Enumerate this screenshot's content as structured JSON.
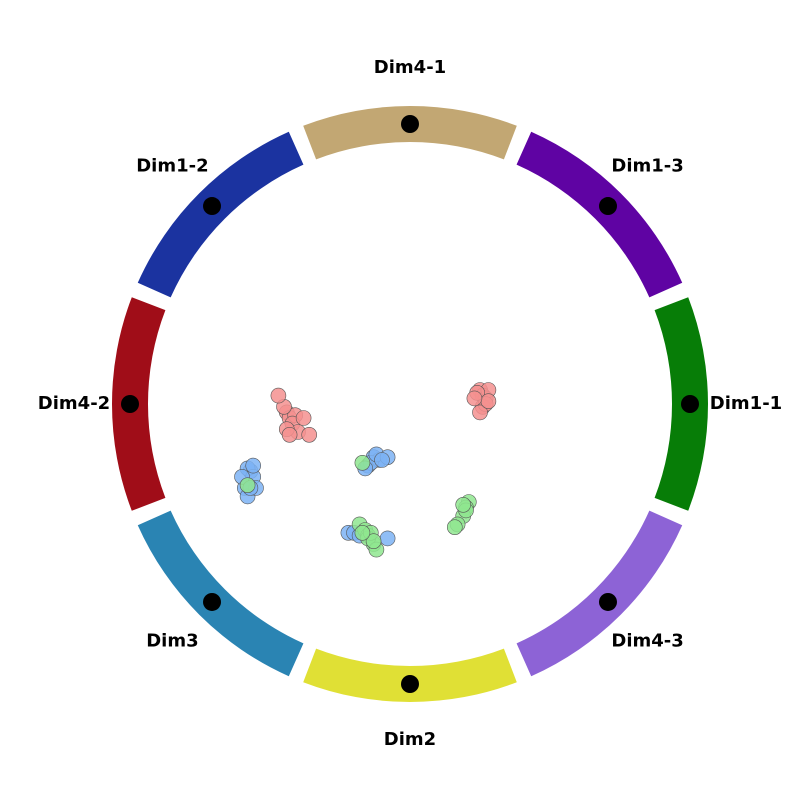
{
  "chart_data": {
    "type": "scatter",
    "subtype": "radviz",
    "title": "",
    "grid": false,
    "legend": "none",
    "anchors": [
      {
        "label": "Dim1-1",
        "angle_deg": 0,
        "color": "#077d07"
      },
      {
        "label": "Dim1-3",
        "angle_deg": 45,
        "color": "#5f03a3"
      },
      {
        "label": "Dim4-1",
        "angle_deg": 90,
        "color": "#c2a773"
      },
      {
        "label": "Dim1-2",
        "angle_deg": 135,
        "color": "#1b33a0"
      },
      {
        "label": "Dim4-2",
        "angle_deg": 180,
        "color": "#a00d18"
      },
      {
        "label": "Dim3",
        "angle_deg": 225,
        "color": "#2a84b3"
      },
      {
        "label": "Dim2",
        "angle_deg": 270,
        "color": "#e0e035"
      },
      {
        "label": "Dim4-3",
        "angle_deg": 315,
        "color": "#8d63d6"
      }
    ],
    "series": [
      {
        "color": "#f5908f",
        "points": [
          [
            0.25,
            0.05
          ],
          [
            0.26,
            0.03
          ],
          [
            0.27,
            0.02
          ],
          [
            0.28,
            0.05
          ],
          [
            0.26,
            -0.01
          ],
          [
            0.27,
            0.0
          ],
          [
            0.24,
            0.04
          ],
          [
            0.25,
            -0.03
          ],
          [
            0.28,
            0.01
          ],
          [
            0.23,
            0.02
          ],
          [
            -0.44,
            -0.03
          ],
          [
            -0.43,
            -0.05
          ],
          [
            -0.41,
            -0.04
          ],
          [
            -0.45,
            -0.01
          ],
          [
            -0.42,
            -0.07
          ],
          [
            -0.4,
            -0.1
          ],
          [
            -0.44,
            -0.09
          ],
          [
            -0.38,
            -0.05
          ],
          [
            -0.47,
            0.03
          ],
          [
            -0.43,
            -0.11
          ],
          [
            -0.36,
            -0.11
          ]
        ]
      },
      {
        "color": "#7db3f5",
        "points": [
          [
            -0.57,
            -0.24
          ],
          [
            -0.58,
            -0.23
          ],
          [
            -0.56,
            -0.26
          ],
          [
            -0.59,
            -0.3
          ],
          [
            -0.58,
            -0.33
          ],
          [
            -0.55,
            -0.3
          ],
          [
            -0.6,
            -0.26
          ],
          [
            -0.57,
            -0.3
          ],
          [
            -0.56,
            -0.22
          ],
          [
            -0.15,
            -0.22
          ],
          [
            -0.13,
            -0.19
          ],
          [
            -0.11,
            -0.2
          ],
          [
            -0.14,
            -0.21
          ],
          [
            -0.12,
            -0.18
          ],
          [
            -0.08,
            -0.19
          ],
          [
            -0.16,
            -0.23
          ],
          [
            -0.1,
            -0.2
          ],
          [
            -0.22,
            -0.46
          ],
          [
            -0.2,
            -0.46
          ],
          [
            -0.08,
            -0.48
          ],
          [
            -0.18,
            -0.47
          ]
        ]
      },
      {
        "color": "#8fe68f",
        "points": [
          [
            -0.58,
            -0.29
          ],
          [
            -0.17,
            -0.21
          ],
          [
            -0.18,
            -0.43
          ],
          [
            -0.16,
            -0.45
          ],
          [
            -0.15,
            -0.47
          ],
          [
            -0.13,
            -0.5
          ],
          [
            -0.15,
            -0.48
          ],
          [
            -0.14,
            -0.46
          ],
          [
            -0.12,
            -0.52
          ],
          [
            -0.13,
            -0.49
          ],
          [
            -0.17,
            -0.46
          ],
          [
            0.21,
            -0.35
          ],
          [
            0.2,
            -0.37
          ],
          [
            0.19,
            -0.4
          ],
          [
            0.17,
            -0.43
          ],
          [
            0.2,
            -0.38
          ],
          [
            0.16,
            -0.44
          ],
          [
            0.19,
            -0.36
          ]
        ]
      }
    ]
  }
}
